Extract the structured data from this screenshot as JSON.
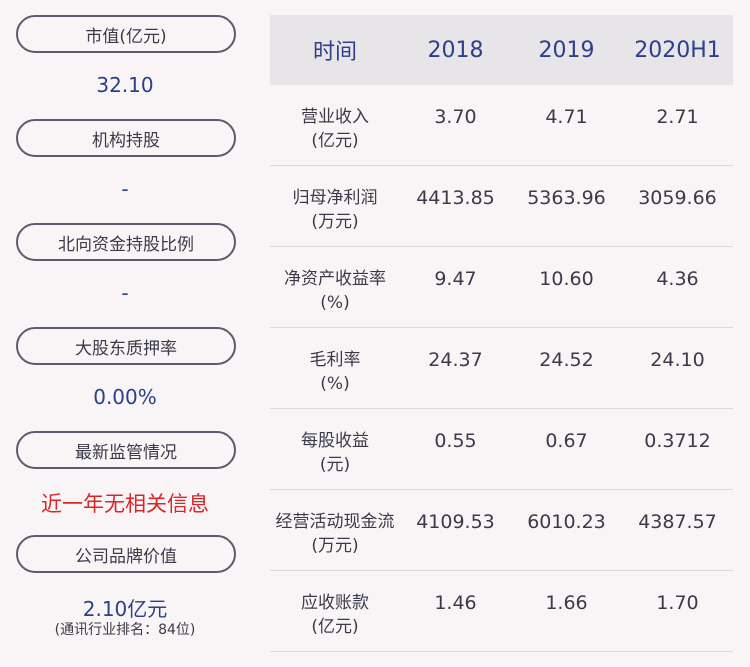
{
  "left": {
    "items": [
      {
        "label": "市值(亿元)",
        "value": "32.10"
      },
      {
        "label": "机构持股",
        "value": "-"
      },
      {
        "label": "北向资金持股比例",
        "value": "-"
      },
      {
        "label": "大股东质押率",
        "value": "0.00%"
      },
      {
        "label": "最新监管情况",
        "value": "近一年无相关信息"
      },
      {
        "label": "公司品牌价值",
        "value": "2.10亿元",
        "note": "(通讯行业排名：84位)"
      }
    ]
  },
  "table": {
    "headers": [
      "时间",
      "2018",
      "2019",
      "2020H1"
    ],
    "rows": [
      {
        "label1": "营业收入",
        "label2": "(亿元)",
        "values": [
          "3.70",
          "4.71",
          "2.71"
        ]
      },
      {
        "label1": "归母净利润",
        "label2": "(万元)",
        "values": [
          "4413.85",
          "5363.96",
          "3059.66"
        ]
      },
      {
        "label1": "净资产收益率",
        "label2": "(%)",
        "values": [
          "9.47",
          "10.60",
          "4.36"
        ]
      },
      {
        "label1": "毛利率",
        "label2": "(%)",
        "values": [
          "24.37",
          "24.52",
          "24.10"
        ]
      },
      {
        "label1": "每股收益",
        "label2": "(元)",
        "values": [
          "0.55",
          "0.67",
          "0.3712"
        ]
      },
      {
        "label1": "经营活动现金流",
        "label2": "(万元)",
        "values": [
          "4109.53",
          "6010.23",
          "4387.57"
        ]
      },
      {
        "label1": "应收账款",
        "label2": "(亿元)",
        "values": [
          "1.46",
          "1.66",
          "1.70"
        ]
      }
    ]
  }
}
